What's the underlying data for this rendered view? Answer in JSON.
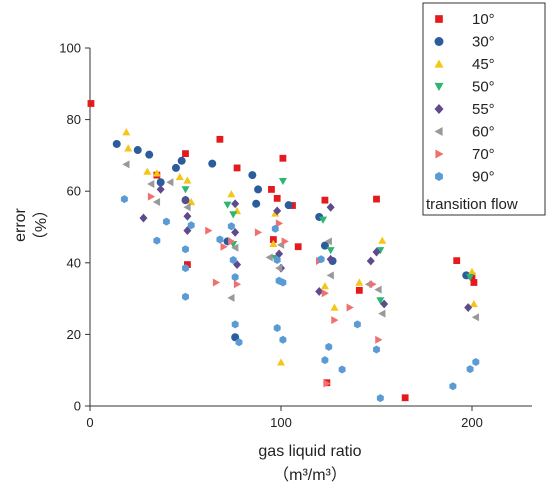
{
  "chart_data": {
    "type": "scatter",
    "title": "",
    "xlabel": "gas liquid ratio",
    "xlabel_unit": "（m³/m³）",
    "ylabel": "error",
    "ylabel_unit": "（%）",
    "xlim": [
      0,
      230
    ],
    "ylim": [
      0,
      100
    ],
    "x_ticks": [
      "0",
      "100",
      "200"
    ],
    "y_ticks": [
      "0",
      "20",
      "40",
      "60",
      "80",
      "100"
    ],
    "grid": false,
    "legend_position": "top-right",
    "legend_note": "transition flow",
    "series": [
      {
        "name": "10°",
        "color": "#e41a1c",
        "marker": "square",
        "points": [
          [
            0.5,
            84.5
          ],
          [
            50,
            70.5
          ],
          [
            68,
            74.5
          ],
          [
            77,
            66.5
          ],
          [
            95,
            60.5
          ],
          [
            101,
            69.2
          ],
          [
            106,
            56
          ],
          [
            109,
            44.5
          ],
          [
            123,
            57.5
          ],
          [
            124,
            6.5
          ],
          [
            141,
            32.3
          ],
          [
            150,
            57.8
          ],
          [
            165,
            2.3
          ],
          [
            192,
            40.6
          ],
          [
            200,
            36.3
          ],
          [
            201,
            34.5
          ],
          [
            98,
            58
          ],
          [
            51,
            39.5
          ],
          [
            35,
            64.5
          ],
          [
            96,
            46.5
          ]
        ]
      },
      {
        "name": "30°",
        "color": "#2b5c9b",
        "marker": "circle",
        "points": [
          [
            14,
            73.2
          ],
          [
            25,
            71.5
          ],
          [
            31,
            70.2
          ],
          [
            37,
            62.5
          ],
          [
            45,
            66.5
          ],
          [
            48,
            68.5
          ],
          [
            64,
            67.7
          ],
          [
            76,
            19.2
          ],
          [
            85,
            64.5
          ],
          [
            87,
            56.5
          ],
          [
            104,
            56.1
          ],
          [
            120,
            52.8
          ],
          [
            123,
            44.8
          ],
          [
            127,
            40.5
          ],
          [
            197,
            36.5
          ],
          [
            88,
            60.5
          ],
          [
            72,
            46
          ],
          [
            50,
            57.5
          ]
        ]
      },
      {
        "name": "45°",
        "color": "#f5c518",
        "marker": "triangle-up",
        "points": [
          [
            19,
            76.5
          ],
          [
            20,
            72
          ],
          [
            30,
            65.5
          ],
          [
            35,
            65
          ],
          [
            47,
            64
          ],
          [
            51,
            63
          ],
          [
            53,
            57
          ],
          [
            74,
            59.2
          ],
          [
            96,
            45.3
          ],
          [
            97,
            53.8
          ],
          [
            100,
            12.2
          ],
          [
            123,
            33.5
          ],
          [
            128,
            27.5
          ],
          [
            141,
            34.5
          ],
          [
            153,
            46.2
          ],
          [
            200,
            37.5
          ],
          [
            201,
            28.5
          ],
          [
            77,
            54.5
          ]
        ]
      },
      {
        "name": "50°",
        "color": "#2bb673",
        "marker": "triangle-down",
        "points": [
          [
            50,
            60.5
          ],
          [
            72,
            56.2
          ],
          [
            75,
            53.5
          ],
          [
            101,
            62.8
          ],
          [
            122,
            52
          ],
          [
            126,
            43.5
          ],
          [
            152,
            43.5
          ],
          [
            152,
            29.5
          ],
          [
            199,
            36
          ],
          [
            97,
            41.3
          ],
          [
            75,
            45.2
          ]
        ]
      },
      {
        "name": "55°",
        "color": "#5e4a8c",
        "marker": "diamond",
        "points": [
          [
            28,
            52.5
          ],
          [
            37,
            60.5
          ],
          [
            50,
            57.5
          ],
          [
            51,
            53
          ],
          [
            51,
            49
          ],
          [
            76,
            56.5
          ],
          [
            76,
            48.5
          ],
          [
            77,
            39.5
          ],
          [
            98,
            54.5
          ],
          [
            99,
            42.5
          ],
          [
            120,
            32
          ],
          [
            126,
            55.5
          ],
          [
            126,
            41
          ],
          [
            147,
            40.5
          ],
          [
            150,
            43
          ],
          [
            154,
            28.5
          ],
          [
            198,
            27.5
          ],
          [
            100,
            38.5
          ]
        ]
      },
      {
        "name": "60°",
        "color": "#999999",
        "marker": "triangle-left",
        "points": [
          [
            19,
            67.5
          ],
          [
            32,
            62
          ],
          [
            35,
            57
          ],
          [
            42,
            62.5
          ],
          [
            51,
            55.5
          ],
          [
            74,
            30.2
          ],
          [
            76,
            44.2
          ],
          [
            94,
            41.5
          ],
          [
            99,
            38.5
          ],
          [
            100,
            45
          ],
          [
            125,
            46
          ],
          [
            126,
            36.5
          ],
          [
            151,
            32.5
          ],
          [
            153,
            25.8
          ],
          [
            202,
            24.8
          ],
          [
            146,
            34
          ]
        ]
      },
      {
        "name": "70°",
        "color": "#f07070",
        "marker": "triangle-right",
        "points": [
          [
            32,
            58.5
          ],
          [
            62,
            49
          ],
          [
            66,
            34.5
          ],
          [
            74,
            46
          ],
          [
            77,
            34
          ],
          [
            88,
            48.5
          ],
          [
            99,
            51
          ],
          [
            102,
            46
          ],
          [
            120,
            40.5
          ],
          [
            123,
            31.5
          ],
          [
            124,
            6.3
          ],
          [
            128,
            24
          ],
          [
            136,
            27.5
          ],
          [
            148,
            34
          ],
          [
            151,
            18.5
          ],
          [
            70,
            44.5
          ]
        ]
      },
      {
        "name": "90°",
        "color": "#5b9bd5",
        "marker": "hexagon",
        "points": [
          [
            18,
            57.8
          ],
          [
            35,
            46.2
          ],
          [
            40,
            51.5
          ],
          [
            50,
            43.8
          ],
          [
            50,
            38.5
          ],
          [
            50,
            30.5
          ],
          [
            53,
            50.5
          ],
          [
            68,
            46.5
          ],
          [
            74,
            50.2
          ],
          [
            75,
            40.8
          ],
          [
            76,
            22.8
          ],
          [
            76,
            36
          ],
          [
            78,
            17.8
          ],
          [
            97,
            49.5
          ],
          [
            98,
            40.8
          ],
          [
            98,
            21.8
          ],
          [
            99,
            35
          ],
          [
            101,
            34.5
          ],
          [
            101,
            18.5
          ],
          [
            121,
            41
          ],
          [
            123,
            12.8
          ],
          [
            125,
            16.5
          ],
          [
            132,
            10.2
          ],
          [
            140,
            22.8
          ],
          [
            150,
            15.8
          ],
          [
            152,
            2.2
          ],
          [
            190,
            5.5
          ],
          [
            199,
            10.3
          ],
          [
            202,
            12.3
          ]
        ]
      }
    ]
  }
}
